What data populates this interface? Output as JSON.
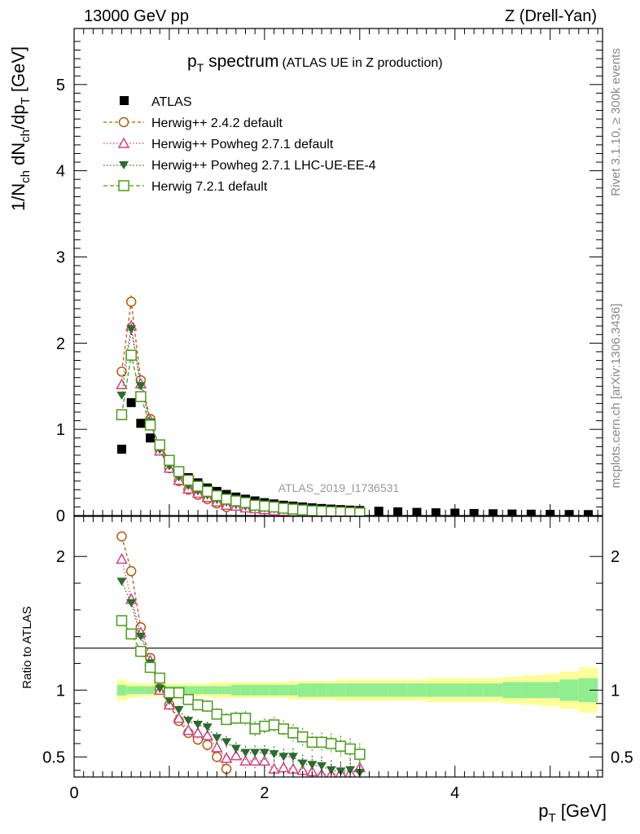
{
  "header": {
    "energy": "13000 GeV pp",
    "process": "Z (Drell-Yan)"
  },
  "side_labels": {
    "rivet": "Rivet 3.1.10, ≥ 300k events",
    "mcplots": "mcplots.cern.ch [arXiv:1306.3436]"
  },
  "chart_data": [
    {
      "panel": "main",
      "type": "scatter",
      "title": "pT spectrum",
      "title_main": "p",
      "title_sub": "T",
      "title_rest": " spectrum",
      "subtitle": "(ATLAS UE in Z production)",
      "ylabel": "1/Nch dNch/dpT [GeV]",
      "ylabel_parts": {
        "a": "1/N",
        "a_sub": "ch",
        "b": " dN",
        "b_sub": "ch",
        "c": "/dp",
        "c_sub": "T",
        "unit": " [GeV]"
      },
      "xlabel": "pT [GeV]",
      "xlabel_parts": {
        "main": "p",
        "sub": "T",
        "unit": " [GeV]"
      },
      "watermark": "ATLAS_2019_I1736531",
      "xlim": [
        0,
        5.55
      ],
      "ylim": [
        0,
        5.65
      ],
      "x_ticks": [
        "0",
        "2",
        "4"
      ],
      "y_ticks": [
        "0",
        "1",
        "2",
        "3",
        "4",
        "5"
      ],
      "x": [
        0.5,
        0.6,
        0.7,
        0.8,
        0.9,
        1.0,
        1.1,
        1.2,
        1.3,
        1.4,
        1.5,
        1.6,
        1.7,
        1.8,
        1.9,
        2.0,
        2.1,
        2.2,
        2.3,
        2.4,
        2.5,
        2.6,
        2.7,
        2.8,
        2.9,
        3.0,
        3.2,
        3.4,
        3.6,
        3.8,
        4.0,
        4.2,
        4.4,
        4.6,
        4.8,
        5.0,
        5.2,
        5.4
      ],
      "series": [
        {
          "name": "ATLAS",
          "marker": "square-filled",
          "color": "#000000",
          "values": [
            0.77,
            1.31,
            1.07,
            0.9,
            0.75,
            0.62,
            0.52,
            0.44,
            0.38,
            0.32,
            0.28,
            0.245,
            0.215,
            0.19,
            0.17,
            0.15,
            0.135,
            0.12,
            0.11,
            0.1,
            0.09,
            0.082,
            0.075,
            0.069,
            0.063,
            0.058,
            0.05,
            0.043,
            0.037,
            0.032,
            0.028,
            0.024,
            0.021,
            0.018,
            0.016,
            0.014,
            0.012,
            0.011
          ]
        },
        {
          "name": "Herwig++ 2.4.2 default",
          "marker": "circle-open",
          "color": "#b35c0b",
          "values": [
            1.67,
            2.48,
            1.57,
            1.12,
            0.76,
            0.55,
            0.4,
            0.3,
            0.24,
            0.19,
            0.14,
            0.1
          ]
        },
        {
          "name": "Herwig++ Powheg 2.7.1 default",
          "marker": "triangle-open",
          "color": "#d0457f",
          "values": [
            1.52,
            2.2,
            1.53,
            1.1,
            0.75,
            0.55,
            0.41,
            0.31,
            0.26,
            0.21,
            0.16,
            0.12,
            0.11,
            0.09,
            0.08,
            0.07,
            0.055,
            0.05,
            0.045,
            0.04,
            0.035,
            0.03,
            0.028,
            0.026,
            0.024,
            0.025
          ]
        },
        {
          "name": "Herwig++ Powheg 2.7.1 LHC-UE-EE-4",
          "marker": "triangle-down-filled",
          "color": "#2d6a2d",
          "values": [
            1.39,
            2.16,
            1.5,
            1.08,
            0.76,
            0.57,
            0.44,
            0.34,
            0.28,
            0.23,
            0.18,
            0.15,
            0.12,
            0.1,
            0.09,
            0.08,
            0.07,
            0.06,
            0.055,
            0.045,
            0.04,
            0.035,
            0.03,
            0.027,
            0.025,
            0.022
          ]
        },
        {
          "name": "Herwig 7.2.1 default",
          "marker": "square-open",
          "color": "#4c9a1b",
          "values": [
            1.17,
            1.86,
            1.38,
            1.05,
            0.82,
            0.64,
            0.51,
            0.41,
            0.34,
            0.28,
            0.23,
            0.19,
            0.17,
            0.15,
            0.12,
            0.11,
            0.1,
            0.085,
            0.075,
            0.065,
            0.055,
            0.05,
            0.045,
            0.04,
            0.035,
            0.03
          ]
        }
      ]
    },
    {
      "panel": "ratio",
      "type": "scatter",
      "ylabel": "Ratio to ATLAS",
      "xlim": [
        0,
        5.55
      ],
      "ylim": [
        0.35,
        2.3
      ],
      "y_ticks": [
        "0.5",
        "1",
        "2"
      ],
      "band_inner": [
        0.04,
        0.03,
        0.03,
        0.03,
        0.03,
        0.03,
        0.03,
        0.03,
        0.03,
        0.03,
        0.03,
        0.03,
        0.04,
        0.04,
        0.04,
        0.04,
        0.04,
        0.04,
        0.04,
        0.05,
        0.05,
        0.05,
        0.05,
        0.05,
        0.05,
        0.05,
        0.05,
        0.05,
        0.05,
        0.05,
        0.05,
        0.05,
        0.05,
        0.06,
        0.06,
        0.06,
        0.08,
        0.09
      ],
      "band_outer": [
        0.08,
        0.06,
        0.05,
        0.05,
        0.05,
        0.05,
        0.05,
        0.05,
        0.05,
        0.05,
        0.06,
        0.06,
        0.06,
        0.06,
        0.06,
        0.06,
        0.06,
        0.06,
        0.07,
        0.07,
        0.07,
        0.07,
        0.07,
        0.08,
        0.08,
        0.08,
        0.08,
        0.08,
        0.08,
        0.09,
        0.09,
        0.09,
        0.09,
        0.1,
        0.11,
        0.12,
        0.14,
        0.17
      ],
      "series": [
        {
          "name": "Herwig++ 2.4.2 default",
          "values": [
            2.15,
            1.89,
            1.47,
            1.24,
            1.01,
            0.89,
            0.77,
            0.68,
            0.63,
            0.59,
            0.5,
            0.41
          ]
        },
        {
          "name": "Herwig++ Powheg 2.7.1 default",
          "values": [
            1.98,
            1.68,
            1.43,
            1.22,
            1.0,
            0.89,
            0.79,
            0.7,
            0.68,
            0.66,
            0.57,
            0.49,
            0.51,
            0.47,
            0.47,
            0.47,
            0.41,
            0.42,
            0.41,
            0.4,
            0.39,
            0.37,
            0.37,
            0.38,
            0.38,
            0.42
          ]
        },
        {
          "name": "Herwig++ Powheg 2.7.1 LHC-UE-EE-4",
          "values": [
            1.81,
            1.65,
            1.4,
            1.2,
            1.01,
            0.92,
            0.85,
            0.77,
            0.74,
            0.72,
            0.64,
            0.61,
            0.56,
            0.53,
            0.53,
            0.53,
            0.52,
            0.5,
            0.5,
            0.45,
            0.44,
            0.43,
            0.4,
            0.39,
            0.4,
            0.38
          ]
        },
        {
          "name": "Herwig 7.2.1 default",
          "values": [
            1.52,
            1.42,
            1.29,
            1.17,
            1.09,
            0.98,
            0.98,
            0.93,
            0.89,
            0.88,
            0.82,
            0.78,
            0.79,
            0.79,
            0.71,
            0.73,
            0.74,
            0.71,
            0.68,
            0.65,
            0.61,
            0.61,
            0.6,
            0.58,
            0.56,
            0.52
          ]
        }
      ]
    }
  ]
}
